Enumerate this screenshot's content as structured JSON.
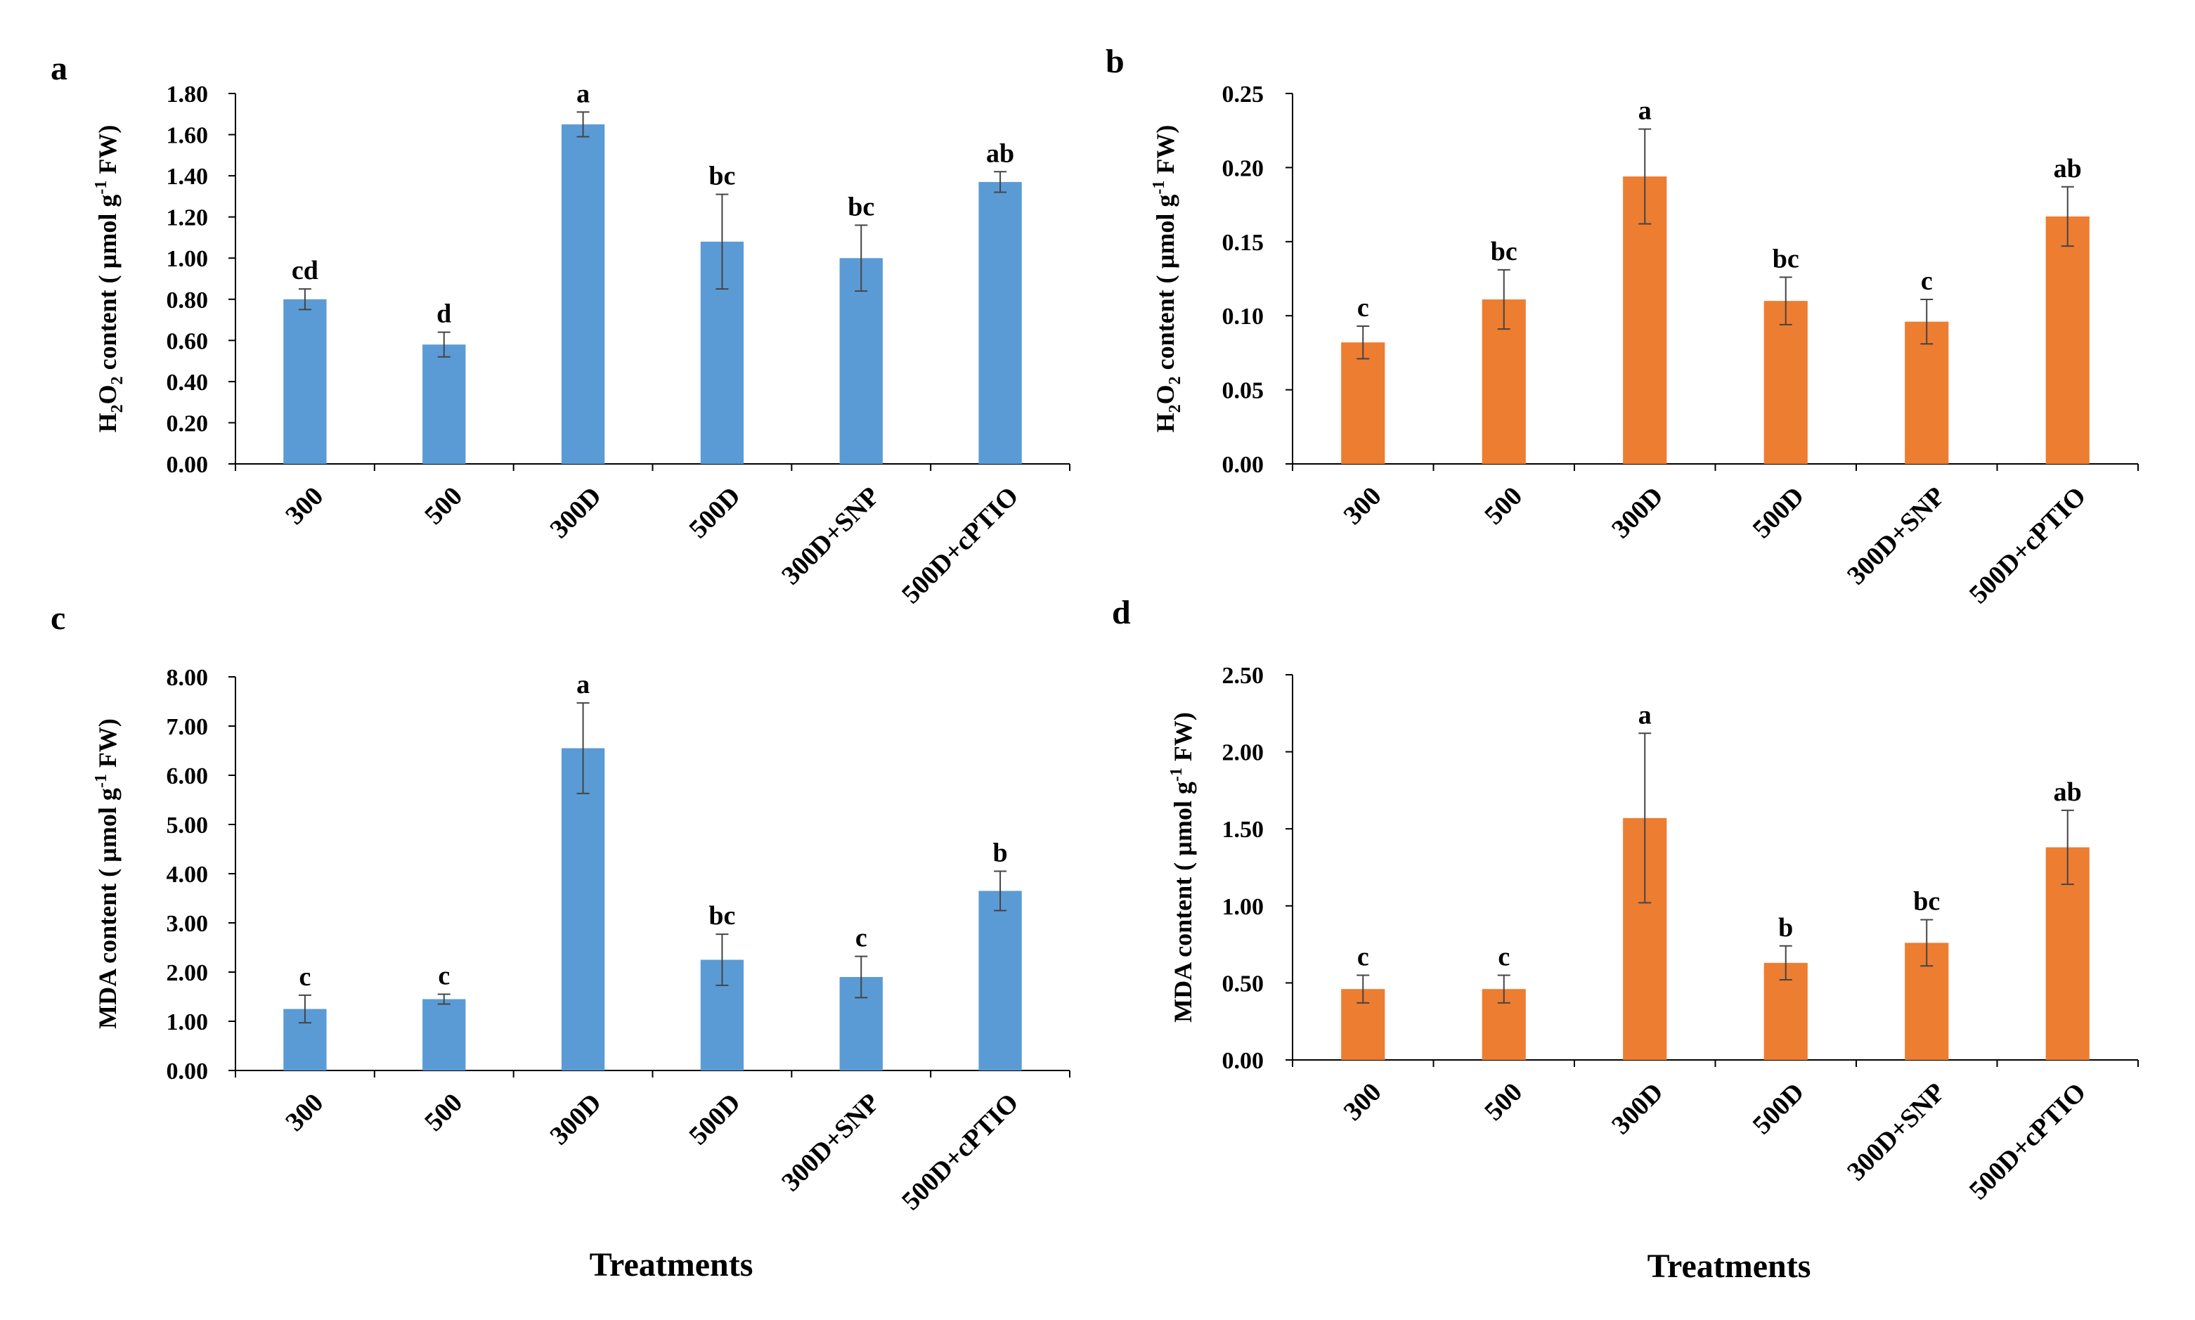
{
  "figure": {
    "xlabel_bottom": "Treatments"
  },
  "chart_data": [
    {
      "panel_label": "a",
      "type": "bar",
      "categories": [
        "300",
        "500",
        "300D",
        "500D",
        "300D+SNP",
        "500D+cPTIO"
      ],
      "values": [
        0.8,
        0.58,
        1.65,
        1.08,
        1.0,
        1.37
      ],
      "errors": [
        0.05,
        0.06,
        0.06,
        0.23,
        0.16,
        0.05
      ],
      "letters": [
        "cd",
        "d",
        "a",
        "bc",
        "bc",
        "ab"
      ],
      "ylabel": {
        "pre": "H",
        "sub1": "2",
        "mid": "O",
        "sub2": "2",
        "post": " content ( µmol g",
        "sup": "-1",
        "end": " FW)"
      },
      "ylim": [
        0,
        1.8
      ],
      "yticks": [
        "0.00",
        "0.20",
        "0.40",
        "0.60",
        "0.80",
        "1.00",
        "1.20",
        "1.40",
        "1.60",
        "1.80"
      ],
      "color": "#5B9BD5",
      "grid": false
    },
    {
      "panel_label": "b",
      "type": "bar",
      "categories": [
        "300",
        "500",
        "300D",
        "500D",
        "300D+SNP",
        "500D+cPTIO"
      ],
      "values": [
        0.082,
        0.111,
        0.194,
        0.11,
        0.096,
        0.167
      ],
      "errors": [
        0.011,
        0.02,
        0.032,
        0.016,
        0.015,
        0.02
      ],
      "letters": [
        "c",
        "bc",
        "a",
        "bc",
        "c",
        "ab"
      ],
      "ylabel": {
        "pre": "H",
        "sub1": "2",
        "mid": "O",
        "sub2": "2",
        "post": " content ( µmol g",
        "sup": "-1",
        "end": " FW)"
      },
      "ylim": [
        0,
        0.25
      ],
      "yticks": [
        "0.00",
        "0.05",
        "0.10",
        "0.15",
        "0.20",
        "0.25"
      ],
      "color": "#ED7D31",
      "grid": false
    },
    {
      "panel_label": "c",
      "type": "bar",
      "categories": [
        "300",
        "500",
        "300D",
        "500D",
        "300D+SNP",
        "500D+cPTIO"
      ],
      "values": [
        1.25,
        1.45,
        6.55,
        2.25,
        1.9,
        3.65
      ],
      "errors": [
        0.28,
        0.1,
        0.92,
        0.52,
        0.42,
        0.4
      ],
      "letters": [
        "c",
        "c",
        "a",
        "bc",
        "c",
        "b"
      ],
      "ylabel": {
        "pre": "MDA content ( µmol g",
        "sup": "-1",
        "end": " FW)"
      },
      "ylim": [
        0,
        8
      ],
      "yticks": [
        "0.00",
        "1.00",
        "2.00",
        "3.00",
        "4.00",
        "5.00",
        "6.00",
        "7.00",
        "8.00"
      ],
      "color": "#5B9BD5",
      "grid": false
    },
    {
      "panel_label": "d",
      "type": "bar",
      "categories": [
        "300",
        "500",
        "300D",
        "500D",
        "300D+SNP",
        "500D+cPTIO"
      ],
      "values": [
        0.46,
        0.46,
        1.57,
        0.63,
        0.76,
        1.38
      ],
      "errors": [
        0.09,
        0.09,
        0.55,
        0.11,
        0.15,
        0.24
      ],
      "letters": [
        "c",
        "c",
        "a",
        "b",
        "bc",
        "ab"
      ],
      "ylabel": {
        "pre": "MDA content ( µmol g",
        "sup": "-1",
        "end": " FW)"
      },
      "ylim": [
        0,
        2.5
      ],
      "yticks": [
        "0.00",
        "0.50",
        "1.00",
        "1.50",
        "2.00",
        "2.50"
      ],
      "color": "#ED7D31",
      "grid": false
    }
  ]
}
